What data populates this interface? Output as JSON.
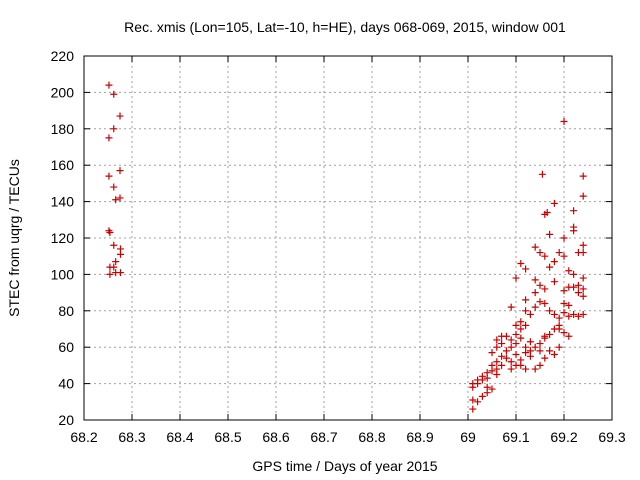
{
  "chart_data": {
    "type": "scatter",
    "title": "Rec. xmis (Lon=105, Lat=-10, h=HE), days 068-069, 2015, window 001",
    "xlabel": "GPS time / Days of year 2015",
    "ylabel": "STEC from uqrg / TECUs",
    "xlim": [
      68.2,
      69.3
    ],
    "ylim": [
      20,
      220
    ],
    "xticks": [
      "68.2",
      "68.3",
      "68.4",
      "68.5",
      "68.6",
      "68.7",
      "68.8",
      "68.9",
      "69",
      "69.1",
      "69.2",
      "69.3"
    ],
    "yticks": [
      "20",
      "40",
      "60",
      "80",
      "100",
      "120",
      "140",
      "160",
      "180",
      "200",
      "220"
    ],
    "grid": true,
    "marker": "+",
    "color": "#cc0000",
    "series": [
      {
        "points": [
          [
            68.252,
            204
          ],
          [
            68.262,
            199
          ],
          [
            68.275,
            187
          ],
          [
            68.262,
            180
          ],
          [
            68.252,
            175
          ],
          [
            68.275,
            157
          ],
          [
            68.252,
            154
          ],
          [
            68.262,
            148
          ],
          [
            68.275,
            142
          ],
          [
            68.266,
            141
          ],
          [
            68.252,
            124
          ],
          [
            68.254,
            123
          ],
          [
            68.262,
            116
          ],
          [
            68.276,
            114
          ],
          [
            68.276,
            111
          ],
          [
            68.266,
            107
          ],
          [
            68.254,
            104
          ],
          [
            68.262,
            104
          ],
          [
            68.254,
            100
          ],
          [
            68.266,
            101
          ],
          [
            68.276,
            101
          ],
          [
            69.01,
            26
          ],
          [
            69.01,
            31
          ],
          [
            69.02,
            30
          ],
          [
            69.03,
            33
          ],
          [
            69.04,
            35
          ],
          [
            69.01,
            38
          ],
          [
            69.01,
            40
          ],
          [
            69.02,
            40
          ],
          [
            69.02,
            42
          ],
          [
            69.03,
            44
          ],
          [
            69.04,
            46
          ],
          [
            69.05,
            47
          ],
          [
            69.05,
            50
          ],
          [
            69.06,
            52
          ],
          [
            69.06,
            48
          ],
          [
            69.07,
            50
          ],
          [
            69.04,
            38
          ],
          [
            69.05,
            37
          ],
          [
            69.06,
            45
          ],
          [
            69.07,
            55
          ],
          [
            69.08,
            58
          ],
          [
            69.08,
            54
          ],
          [
            69.09,
            52
          ],
          [
            69.1,
            56
          ],
          [
            69.09,
            48
          ],
          [
            69.1,
            50
          ],
          [
            69.11,
            53
          ],
          [
            69.12,
            57
          ],
          [
            69.13,
            55
          ],
          [
            69.14,
            48
          ],
          [
            69.15,
            50
          ],
          [
            69.11,
            50
          ],
          [
            69.12,
            48
          ],
          [
            69.05,
            57
          ],
          [
            69.06,
            60
          ],
          [
            69.07,
            62
          ],
          [
            69.08,
            66
          ],
          [
            69.09,
            64
          ],
          [
            69.1,
            67
          ],
          [
            69.11,
            70
          ],
          [
            69.12,
            72
          ],
          [
            69.06,
            64
          ],
          [
            69.07,
            66
          ],
          [
            69.09,
            60
          ],
          [
            69.1,
            62
          ],
          [
            69.11,
            65
          ],
          [
            69.12,
            60
          ],
          [
            69.13,
            63
          ],
          [
            69.14,
            60
          ],
          [
            69.15,
            62
          ],
          [
            69.16,
            65
          ],
          [
            69.17,
            67
          ],
          [
            69.18,
            70
          ],
          [
            69.19,
            72
          ],
          [
            69.1,
            72
          ],
          [
            69.11,
            74
          ],
          [
            69.12,
            80
          ],
          [
            69.13,
            78
          ],
          [
            69.14,
            82
          ],
          [
            69.15,
            85
          ],
          [
            69.16,
            84
          ],
          [
            69.17,
            80
          ],
          [
            69.18,
            78
          ],
          [
            69.19,
            76
          ],
          [
            69.2,
            79
          ],
          [
            69.21,
            77
          ],
          [
            69.22,
            78
          ],
          [
            69.23,
            77
          ],
          [
            69.24,
            78
          ],
          [
            69.09,
            82
          ],
          [
            69.12,
            86
          ],
          [
            69.14,
            90
          ],
          [
            69.15,
            94
          ],
          [
            69.16,
            92
          ],
          [
            69.14,
            97
          ],
          [
            69.18,
            96
          ],
          [
            69.1,
            98
          ],
          [
            69.11,
            106
          ],
          [
            69.12,
            103
          ],
          [
            69.14,
            115
          ],
          [
            69.15,
            112
          ],
          [
            69.16,
            110
          ],
          [
            69.17,
            104
          ],
          [
            69.18,
            107
          ],
          [
            69.19,
            112
          ],
          [
            69.2,
            110
          ],
          [
            69.21,
            102
          ],
          [
            69.22,
            100
          ],
          [
            69.23,
            94
          ],
          [
            69.24,
            92
          ],
          [
            69.24,
            98
          ],
          [
            69.17,
            122
          ],
          [
            69.2,
            120
          ],
          [
            69.22,
            124
          ],
          [
            69.24,
            116
          ],
          [
            69.23,
            112
          ],
          [
            69.24,
            112
          ],
          [
            69.22,
            126
          ],
          [
            69.16,
            133
          ],
          [
            69.165,
            134
          ],
          [
            69.18,
            139
          ],
          [
            69.22,
            135
          ],
          [
            69.24,
            143
          ],
          [
            69.155,
            155
          ],
          [
            69.24,
            154
          ],
          [
            69.2,
            184
          ],
          [
            69.2,
            91
          ],
          [
            69.21,
            93
          ],
          [
            69.22,
            93
          ],
          [
            69.23,
            90
          ],
          [
            69.24,
            88
          ],
          [
            69.2,
            84
          ],
          [
            69.21,
            83
          ],
          [
            69.19,
            70
          ],
          [
            69.2,
            68
          ],
          [
            69.21,
            66
          ],
          [
            69.16,
            66
          ],
          [
            69.17,
            58
          ],
          [
            69.18,
            56
          ],
          [
            69.19,
            60
          ],
          [
            69.16,
            54
          ],
          [
            69.15,
            58
          ],
          [
            69.13,
            58
          ],
          [
            69.03,
            42
          ],
          [
            69.04,
            43
          ]
        ]
      }
    ]
  }
}
